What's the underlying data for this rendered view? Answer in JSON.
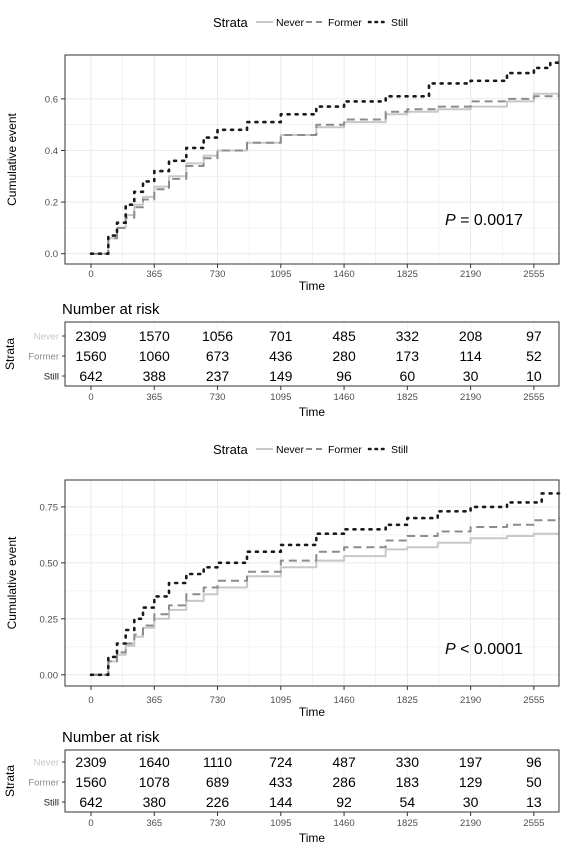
{
  "colors": {
    "never": "#c8c8c8",
    "former": "#8c8c8c",
    "still": "#1a1a1a",
    "grid": "#ebebeb",
    "axis_text": "#4d4d4d"
  },
  "chart_data": [
    {
      "type": "line",
      "title": "",
      "legend_title": "Strata",
      "legend_position": "top",
      "xlabel": "Time",
      "ylabel": "Cumulative event",
      "xlim": [
        -150,
        2700
      ],
      "ylim": [
        -0.04,
        0.77
      ],
      "x_ticks": [
        0,
        365,
        730,
        1095,
        1460,
        1825,
        2190,
        2555
      ],
      "y_ticks": [
        0.0,
        0.2,
        0.4,
        0.6
      ],
      "y_tick_labels": [
        "0.0",
        "0.2",
        "0.4",
        "0.6"
      ],
      "grid": true,
      "pvalue": {
        "prefix": "P",
        "text": " = 0.0017"
      },
      "series": [
        {
          "name": "Never",
          "key": "never",
          "x": [
            0,
            60,
            100,
            150,
            200,
            250,
            300,
            365,
            450,
            550,
            650,
            730,
            900,
            1095,
            1300,
            1460,
            1700,
            1825,
            2000,
            2190,
            2400,
            2555,
            2700
          ],
          "y": [
            0,
            0,
            0.06,
            0.1,
            0.15,
            0.19,
            0.22,
            0.26,
            0.3,
            0.35,
            0.38,
            0.4,
            0.43,
            0.46,
            0.49,
            0.51,
            0.54,
            0.55,
            0.56,
            0.57,
            0.59,
            0.62,
            0.62
          ]
        },
        {
          "name": "Former",
          "key": "former",
          "x": [
            0,
            60,
            100,
            150,
            200,
            250,
            300,
            365,
            450,
            550,
            650,
            730,
            900,
            1095,
            1300,
            1460,
            1700,
            1825,
            2000,
            2190,
            2400,
            2555,
            2700
          ],
          "y": [
            0,
            0,
            0.06,
            0.1,
            0.14,
            0.18,
            0.21,
            0.25,
            0.29,
            0.34,
            0.37,
            0.4,
            0.43,
            0.46,
            0.5,
            0.52,
            0.55,
            0.56,
            0.57,
            0.59,
            0.6,
            0.61,
            0.61
          ]
        },
        {
          "name": "Still",
          "key": "still",
          "x": [
            0,
            60,
            100,
            150,
            200,
            250,
            300,
            365,
            450,
            550,
            650,
            730,
            900,
            1095,
            1300,
            1460,
            1700,
            1825,
            1950,
            2190,
            2400,
            2555,
            2650,
            2700
          ],
          "y": [
            0,
            0,
            0.07,
            0.12,
            0.19,
            0.24,
            0.28,
            0.32,
            0.36,
            0.41,
            0.45,
            0.48,
            0.51,
            0.54,
            0.57,
            0.59,
            0.61,
            0.61,
            0.66,
            0.67,
            0.7,
            0.72,
            0.74,
            0.74
          ]
        }
      ],
      "risk_table": {
        "title": "Number at risk",
        "ylabel": "Strata",
        "xlabel": "Time",
        "rows": [
          {
            "name": "Never",
            "key": "never",
            "values": [
              2309,
              1570,
              1056,
              701,
              485,
              332,
              208,
              97
            ]
          },
          {
            "name": "Former",
            "key": "former",
            "values": [
              1560,
              1060,
              673,
              436,
              280,
              173,
              114,
              52
            ]
          },
          {
            "name": "Still",
            "key": "still",
            "values": [
              642,
              388,
              237,
              149,
              96,
              60,
              30,
              10
            ]
          }
        ]
      }
    },
    {
      "type": "line",
      "title": "",
      "legend_title": "Strata",
      "legend_position": "top",
      "xlabel": "Time",
      "ylabel": "Cumulative event",
      "xlim": [
        -150,
        2700
      ],
      "ylim": [
        -0.05,
        0.87
      ],
      "x_ticks": [
        0,
        365,
        730,
        1095,
        1460,
        1825,
        2190,
        2555
      ],
      "y_ticks": [
        0.0,
        0.25,
        0.5,
        0.75
      ],
      "y_tick_labels": [
        "0.00",
        "0.25",
        "0.50",
        "0.75"
      ],
      "grid": true,
      "pvalue": {
        "prefix": "P",
        "text": " < 0.0001"
      },
      "series": [
        {
          "name": "Never",
          "key": "never",
          "x": [
            0,
            60,
            100,
            150,
            200,
            250,
            300,
            365,
            450,
            550,
            650,
            730,
            900,
            1095,
            1300,
            1460,
            1700,
            1825,
            2000,
            2190,
            2400,
            2555,
            2700
          ],
          "y": [
            0,
            0,
            0.06,
            0.09,
            0.13,
            0.17,
            0.21,
            0.25,
            0.29,
            0.33,
            0.36,
            0.39,
            0.44,
            0.48,
            0.51,
            0.53,
            0.56,
            0.57,
            0.59,
            0.61,
            0.62,
            0.63,
            0.63
          ]
        },
        {
          "name": "Former",
          "key": "former",
          "x": [
            0,
            60,
            100,
            150,
            200,
            250,
            300,
            365,
            450,
            550,
            650,
            730,
            900,
            1095,
            1300,
            1460,
            1700,
            1825,
            2000,
            2190,
            2400,
            2555,
            2700
          ],
          "y": [
            0,
            0,
            0.06,
            0.1,
            0.14,
            0.18,
            0.22,
            0.27,
            0.31,
            0.36,
            0.39,
            0.42,
            0.46,
            0.51,
            0.55,
            0.57,
            0.6,
            0.62,
            0.64,
            0.66,
            0.67,
            0.69,
            0.7
          ]
        },
        {
          "name": "Still",
          "key": "still",
          "x": [
            0,
            60,
            100,
            150,
            200,
            250,
            300,
            365,
            450,
            550,
            650,
            730,
            900,
            1095,
            1300,
            1460,
            1700,
            1825,
            2000,
            2190,
            2400,
            2555,
            2600,
            2700
          ],
          "y": [
            0,
            0,
            0.08,
            0.14,
            0.2,
            0.25,
            0.3,
            0.35,
            0.41,
            0.45,
            0.48,
            0.5,
            0.55,
            0.58,
            0.63,
            0.65,
            0.67,
            0.7,
            0.73,
            0.75,
            0.77,
            0.77,
            0.81,
            0.81
          ]
        }
      ],
      "risk_table": {
        "title": "Number at risk",
        "ylabel": "Strata",
        "xlabel": "Time",
        "rows": [
          {
            "name": "Never",
            "key": "never",
            "values": [
              2309,
              1640,
              1110,
              724,
              487,
              330,
              197,
              96
            ]
          },
          {
            "name": "Former",
            "key": "former",
            "values": [
              1560,
              1078,
              689,
              433,
              286,
              183,
              129,
              50
            ]
          },
          {
            "name": "Still",
            "key": "still",
            "values": [
              642,
              380,
              226,
              144,
              92,
              54,
              30,
              13
            ]
          }
        ]
      }
    }
  ]
}
